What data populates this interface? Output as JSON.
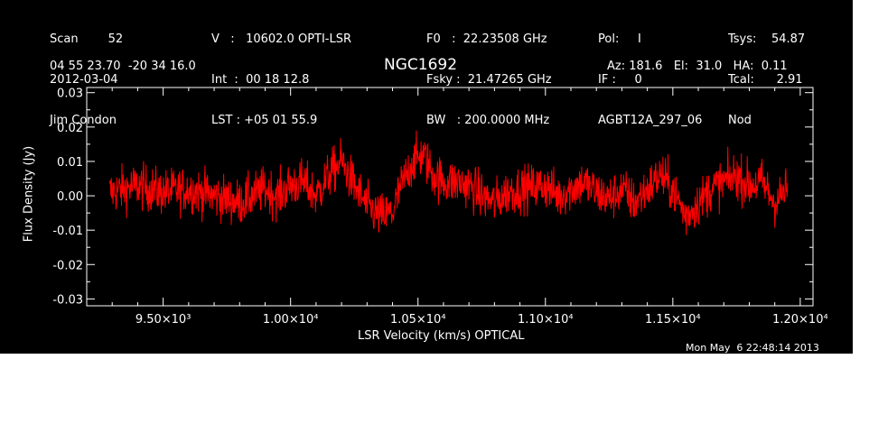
{
  "header": {
    "col1": [
      "Scan        52",
      "2012-03-04",
      "Jim Condon"
    ],
    "col2": [
      "V   :   10602.0 OPTI-LSR",
      "Int  :  00 18 12.8",
      "LST : +05 01 55.9"
    ],
    "col3": [
      "F0   :  22.23508 GHz",
      "Fsky :  21.47265 GHz",
      "BW   : 200.0000 MHz"
    ],
    "col4": [
      "Pol:     I",
      "IF :     0",
      "AGBT12A_297_06"
    ],
    "col5": [
      "Tsys:    54.87",
      "Tcal:      2.91",
      "Nod"
    ],
    "coords": "04 55 23.70  -20 34 16.0",
    "pointing": "Az: 181.6   El:  31.0   HA:  0.11",
    "timestamp": "Mon May  6 22:48:14 2013"
  },
  "chart_data": {
    "type": "line",
    "title": "NGC1692",
    "xlabel": "LSR Velocity (km/s) OPTICAL",
    "ylabel": "Flux Density (Jy)",
    "xlim": [
      9200,
      12050
    ],
    "ylim": [
      -0.032,
      0.0315
    ],
    "xticks": [
      9500,
      10000,
      10500,
      11000,
      11500,
      12000
    ],
    "xtick_labels": [
      "9.50×10³",
      "1.00×10⁴",
      "1.05×10⁴",
      "1.10×10⁴",
      "1.15×10⁴",
      "1.20×10⁴"
    ],
    "yticks": [
      0.03,
      0.02,
      0.01,
      0.0,
      -0.01,
      -0.02,
      -0.03
    ],
    "ytick_labels": [
      "0.03",
      "0.02",
      "0.01",
      "0.00",
      "-0.01",
      "-0.02",
      "-0.03"
    ],
    "grid": false,
    "series": [
      {
        "color": "#ff0000",
        "x_range": [
          9290,
          11950
        ],
        "trend": [
          [
            9290,
            0.001
          ],
          [
            9400,
            0.003
          ],
          [
            9500,
            0.001
          ],
          [
            9600,
            0.002
          ],
          [
            9700,
            0.0
          ],
          [
            9800,
            -0.002
          ],
          [
            9900,
            0.002
          ],
          [
            9950,
            0.0
          ],
          [
            10000,
            0.003
          ],
          [
            10050,
            0.004
          ],
          [
            10100,
            0.0
          ],
          [
            10150,
            0.006
          ],
          [
            10200,
            0.01
          ],
          [
            10250,
            0.003
          ],
          [
            10300,
            -0.003
          ],
          [
            10350,
            -0.006
          ],
          [
            10400,
            -0.005
          ],
          [
            10430,
            0.002
          ],
          [
            10480,
            0.01
          ],
          [
            10520,
            0.012
          ],
          [
            10560,
            0.006
          ],
          [
            10600,
            0.004
          ],
          [
            10650,
            0.004
          ],
          [
            10700,
            0.003
          ],
          [
            10750,
            0.0
          ],
          [
            10800,
            -0.002
          ],
          [
            10850,
            0.001
          ],
          [
            10900,
            0.002
          ],
          [
            11000,
            0.003
          ],
          [
            11050,
            0.0
          ],
          [
            11100,
            0.002
          ],
          [
            11150,
            0.004
          ],
          [
            11200,
            0.001
          ],
          [
            11250,
            -0.001
          ],
          [
            11300,
            0.002
          ],
          [
            11350,
            -0.002
          ],
          [
            11400,
            0.002
          ],
          [
            11450,
            0.006
          ],
          [
            11500,
            0.002
          ],
          [
            11550,
            -0.006
          ],
          [
            11600,
            -0.002
          ],
          [
            11650,
            0.002
          ],
          [
            11700,
            0.004
          ],
          [
            11750,
            0.006
          ],
          [
            11800,
            0.003
          ],
          [
            11850,
            0.004
          ],
          [
            11900,
            -0.002
          ],
          [
            11950,
            0.002
          ]
        ],
        "noise_amplitude_jy": 0.006
      }
    ]
  }
}
